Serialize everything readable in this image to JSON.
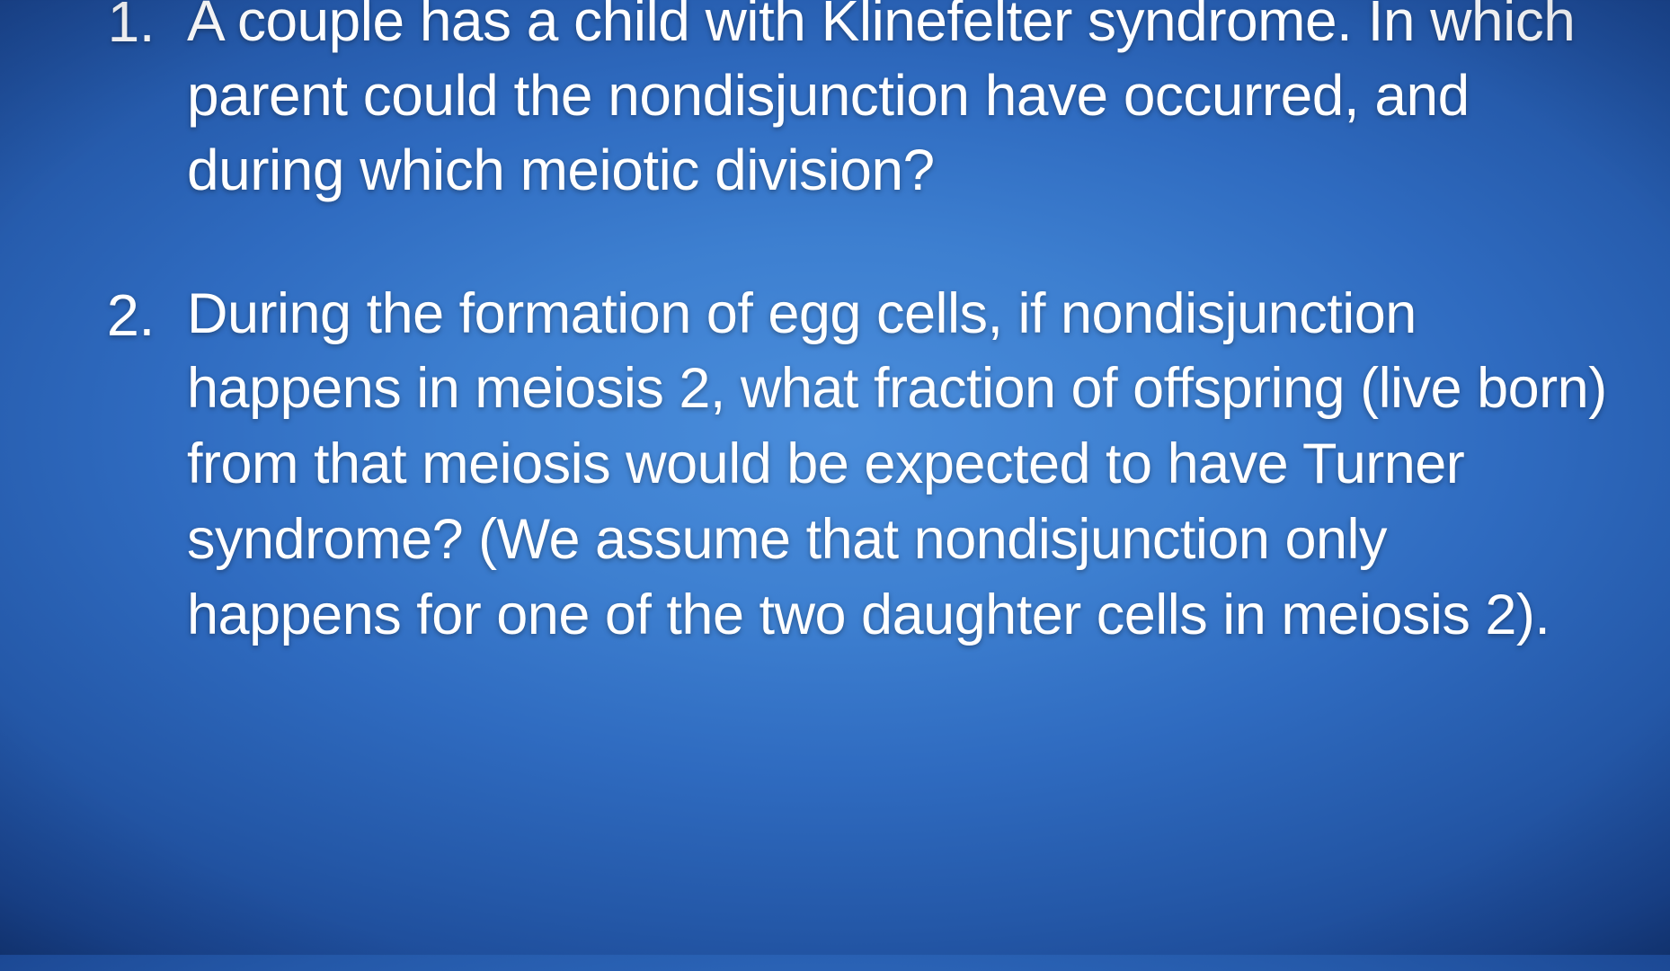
{
  "slide": {
    "background": {
      "gradient_type": "radial",
      "center_color": "#4a8ddb",
      "mid_color": "#2f6bc0",
      "edge_color": "#0e2f6a",
      "corner_color": "#061e4a"
    },
    "text_color": "#ffffff",
    "font_family": "Arial",
    "questions": [
      {
        "number": "1.",
        "text": "A couple has a child with Klinefelter syndrome. In which parent could the nondisjunction have occurred, and during which meiotic division?",
        "font_size_pt": 48
      },
      {
        "number": "2.",
        "text": "During the formation of egg cells, if nondisjunction happens in meiosis 2, what fraction of offspring (live born) from that meiosis would be expected to have Turner syndrome? (We assume that nondisjunction only happens for one of the two daughter cells in meiosis 2).",
        "font_size_pt": 47
      }
    ]
  }
}
